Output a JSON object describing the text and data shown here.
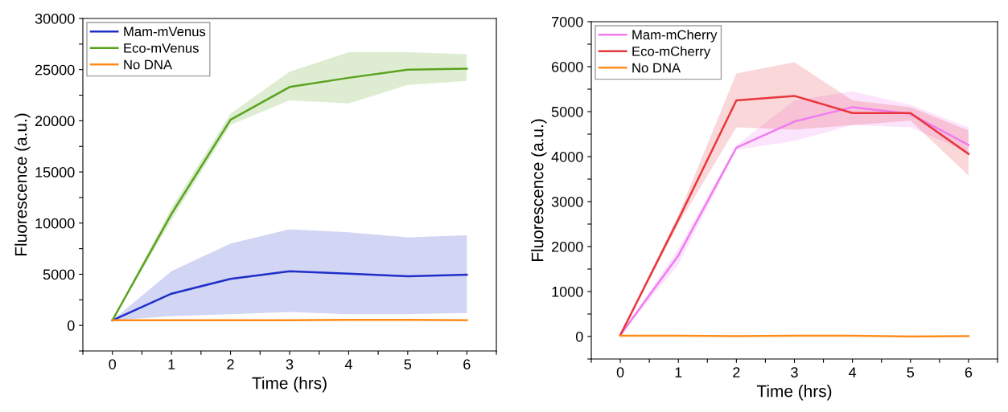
{
  "chart_data": [
    {
      "type": "line",
      "xlabel": "Time (hrs)",
      "ylabel": "Fluorescence (a.u.)",
      "x": [
        0,
        1,
        2,
        3,
        4,
        5,
        6
      ],
      "series": [
        {
          "name": "Mam-mVenus",
          "color": "#1f2fc8",
          "values": [
            500,
            3100,
            4550,
            5300,
            5050,
            4800,
            4950
          ],
          "lower": [
            500,
            900,
            1100,
            1300,
            1100,
            1100,
            1200
          ],
          "upper": [
            500,
            5300,
            8000,
            9400,
            9100,
            8600,
            8800
          ]
        },
        {
          "name": "Eco-mVenus",
          "color": "#5aa320",
          "values": [
            500,
            10900,
            20100,
            23300,
            24200,
            25000,
            25100
          ],
          "lower": [
            500,
            10300,
            19600,
            22000,
            21700,
            23500,
            23900
          ],
          "upper": [
            500,
            11500,
            20700,
            24800,
            26700,
            26700,
            26500
          ]
        },
        {
          "name": "No DNA",
          "color": "#ff8c1a",
          "values": [
            500,
            500,
            500,
            500,
            550,
            550,
            500
          ]
        }
      ],
      "xlim": [
        -0.5,
        6.5
      ],
      "ylim": [
        -2500,
        30000
      ],
      "xticks": [
        {
          "value": -0.5,
          "label": null
        },
        0,
        {
          "value": 0.5,
          "label": null
        },
        1,
        {
          "value": 1.5,
          "label": null
        },
        2,
        {
          "value": 2.5,
          "label": null
        },
        3,
        {
          "value": 3.5,
          "label": null
        },
        4,
        {
          "value": 4.5,
          "label": null
        },
        5,
        {
          "value": 5.5,
          "label": null
        },
        6,
        {
          "value": 6.5,
          "label": null
        }
      ],
      "yticks": [
        {
          "value": -2500,
          "label": null
        },
        0,
        {
          "value": 2500,
          "label": null
        },
        5000,
        {
          "value": 7500,
          "label": null
        },
        10000,
        {
          "value": 12500,
          "label": null
        },
        15000,
        {
          "value": 17500,
          "label": null
        },
        20000,
        {
          "value": 22500,
          "label": null
        },
        25000,
        {
          "value": 27500,
          "label": null
        },
        30000
      ],
      "legend": "top left",
      "grid": false
    },
    {
      "type": "line",
      "xlabel": "Time (hrs)",
      "ylabel": "Fluorescence (a.u.)",
      "x": [
        0,
        1,
        2,
        3,
        4,
        5,
        6
      ],
      "series": [
        {
          "name": "Mam-mCherry",
          "color": "#f07cf0",
          "values": [
            30,
            1800,
            4200,
            4780,
            5100,
            4950,
            4260
          ],
          "lower": [
            30,
            1600,
            4150,
            4350,
            4700,
            4650,
            4100
          ],
          "upper": [
            30,
            1950,
            4250,
            5250,
            5450,
            5150,
            4650
          ]
        },
        {
          "name": "Eco-mCherry",
          "color": "#e8363c",
          "values": [
            30,
            2600,
            5250,
            5350,
            4970,
            4970,
            4060
          ],
          "lower": [
            30,
            2500,
            4650,
            4600,
            4700,
            4800,
            3580
          ],
          "upper": [
            30,
            2700,
            5850,
            6100,
            5250,
            5100,
            4580
          ]
        },
        {
          "name": "No DNA",
          "color": "#ff8c1a",
          "values": [
            20,
            20,
            10,
            20,
            20,
            0,
            10
          ]
        }
      ],
      "xlim": [
        -0.5,
        6.5
      ],
      "ylim": [
        -500,
        7000
      ],
      "xticks": [
        {
          "value": -0.5,
          "label": null
        },
        0,
        {
          "value": 0.5,
          "label": null
        },
        1,
        {
          "value": 1.5,
          "label": null
        },
        2,
        {
          "value": 2.5,
          "label": null
        },
        3,
        {
          "value": 3.5,
          "label": null
        },
        4,
        {
          "value": 4.5,
          "label": null
        },
        5,
        {
          "value": 5.5,
          "label": null
        },
        6,
        {
          "value": 6.5,
          "label": null
        }
      ],
      "yticks": [
        {
          "value": -500,
          "label": null
        },
        0,
        {
          "value": 500,
          "label": null
        },
        1000,
        {
          "value": 1500,
          "label": null
        },
        2000,
        {
          "value": 2500,
          "label": null
        },
        3000,
        {
          "value": 3500,
          "label": null
        },
        4000,
        {
          "value": 4500,
          "label": null
        },
        5000,
        {
          "value": 5500,
          "label": null
        },
        6000,
        {
          "value": 6500,
          "label": null
        },
        7000
      ],
      "legend": "top left",
      "grid": false
    }
  ]
}
